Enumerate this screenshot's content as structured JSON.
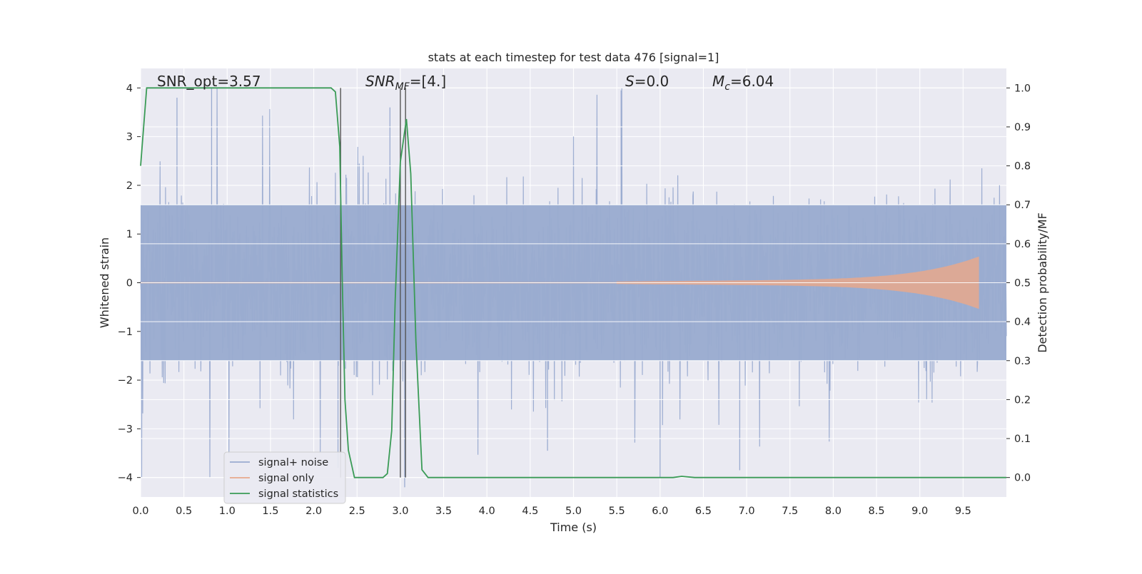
{
  "chart_data": {
    "type": "line",
    "title": "stats at each timestep for test data 476 [signal=1]",
    "xlabel": "Time (s)",
    "ylabel": "Whitened strain",
    "y2label": "Detection probability/MF",
    "xlim": [
      0.0,
      10.0
    ],
    "ylim": [
      -4.4,
      4.4
    ],
    "y2lim": [
      -0.05,
      1.05
    ],
    "x_ticks": [
      "0.0",
      "0.5",
      "1.0",
      "1.5",
      "2.0",
      "2.5",
      "3.0",
      "3.5",
      "4.0",
      "4.5",
      "5.0",
      "5.5",
      "6.0",
      "6.5",
      "7.0",
      "7.5",
      "8.0",
      "8.5",
      "9.0",
      "9.5"
    ],
    "y_ticks": [
      "4",
      "3",
      "2",
      "1",
      "0",
      "−1",
      "−2",
      "−3",
      "−4"
    ],
    "y2_ticks": [
      "1.0",
      "0.9",
      "0.8",
      "0.7",
      "0.6",
      "0.5",
      "0.4",
      "0.3",
      "0.2",
      "0.1",
      "0.0"
    ],
    "grid": true,
    "legend_position": "lower-left",
    "annotations": {
      "snr_opt": "SNR_opt=3.57",
      "snr_mf": "SNR_MF=[4.]",
      "s_value": "S=0.0",
      "mc_value": "M_c=6.04"
    },
    "series": [
      {
        "name": "signal+ noise",
        "color": "#9aabd0",
        "envelope": {
          "x_range": [
            0.0,
            10.0
          ],
          "typical_abs": 1.6,
          "peak_abs": 4.0
        },
        "notable_peaks": [
          {
            "x": 0.82,
            "y": 4.0
          },
          {
            "x": 0.42,
            "y": 3.8
          },
          {
            "x": 2.88,
            "y": 3.6
          },
          {
            "x": 5.55,
            "y": 3.95
          },
          {
            "x": 6.0,
            "y": -4.0
          },
          {
            "x": 6.92,
            "y": -3.85
          },
          {
            "x": 4.7,
            "y": -3.45
          },
          {
            "x": 3.05,
            "y": -4.2
          },
          {
            "x": 2.28,
            "y": -3.8
          }
        ]
      },
      {
        "name": "signal only",
        "color": "#e8a98c",
        "chirp": {
          "start": 5.5,
          "end": 9.68,
          "end_amplitude": 0.45
        }
      },
      {
        "name": "signal statistics",
        "color": "#3a9b56",
        "axis": "right",
        "x": [
          0.0,
          0.07,
          0.15,
          0.3,
          2.0,
          2.2,
          2.25,
          2.3,
          2.33,
          2.36,
          2.4,
          2.47,
          2.6,
          2.8,
          2.85,
          2.9,
          2.94,
          3.0,
          3.07,
          3.12,
          3.18,
          3.25,
          3.32,
          3.5,
          6.0,
          6.15,
          6.25,
          6.4,
          7.0,
          10.0
        ],
        "y": [
          0.8,
          1.0,
          1.0,
          1.0,
          1.0,
          1.0,
          0.99,
          0.85,
          0.5,
          0.2,
          0.07,
          0.0,
          0.0,
          0.0,
          0.01,
          0.12,
          0.45,
          0.81,
          0.92,
          0.78,
          0.35,
          0.02,
          0.0,
          0.0,
          0.0,
          0.0,
          0.003,
          0.0,
          0.0,
          0.0
        ]
      }
    ],
    "vertical_lines": [
      2.31,
      3.0,
      3.06
    ]
  }
}
